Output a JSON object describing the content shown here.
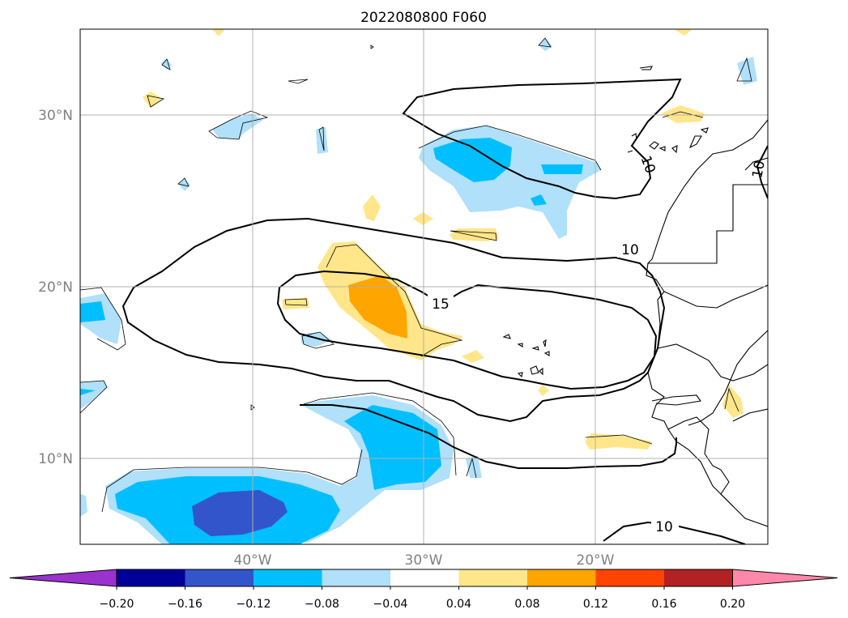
{
  "title": "2022080800 F060",
  "map": {
    "lat_labels": [
      "30°N",
      "20°N",
      "10°N"
    ],
    "lon_labels": [
      "40°W",
      "30°W",
      "20°W"
    ],
    "contour_labels": [
      "10",
      "15",
      "10",
      "10",
      "10"
    ]
  },
  "colorbar": {
    "tick_labels": [
      "−0.20",
      "−0.16",
      "−0.12",
      "−0.08",
      "−0.04",
      "0.04",
      "0.08",
      "0.12",
      "0.16",
      "0.20"
    ],
    "colors": [
      "#9933cc",
      "#000099",
      "#3355cc",
      "#00bfff",
      "#b0e0fa",
      "#ffffff",
      "#ffe68a",
      "#ffa500",
      "#ff4400",
      "#b22222",
      "#ff88aa"
    ]
  },
  "colors": {
    "neg_light": "#b0e0fa",
    "neg_mid": "#00bfff",
    "neg_dark": "#3355cc",
    "pos_light": "#ffe68a",
    "pos_mid": "#ffa500",
    "grid": "#b0b0b0"
  }
}
